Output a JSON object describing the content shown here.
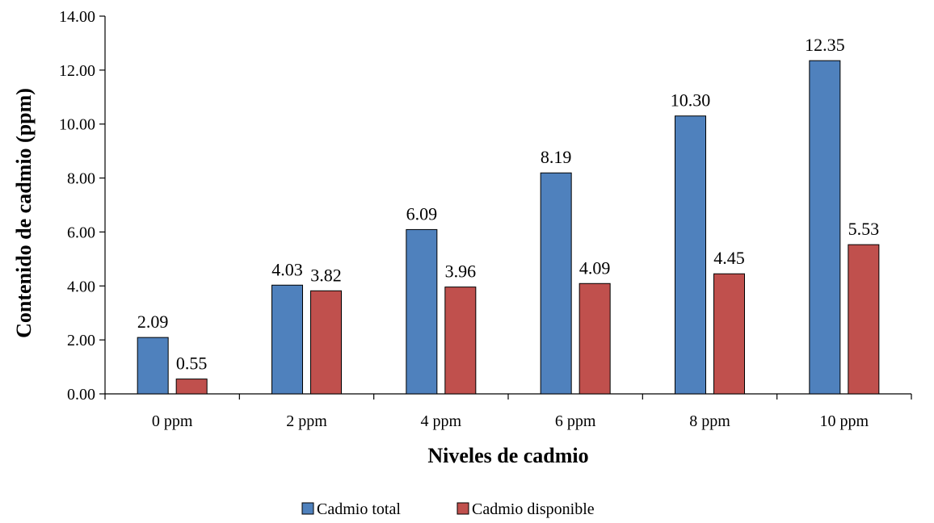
{
  "chart_data": {
    "type": "bar",
    "title": "",
    "xlabel": "Niveles de cadmio",
    "ylabel": "Contenido de cadmio (ppm)",
    "categories": [
      "0 ppm",
      "2 ppm",
      "4 ppm",
      "6 ppm",
      "8 ppm",
      "10 ppm"
    ],
    "series": [
      {
        "name": "Cadmio total",
        "color": "#4F81BD",
        "values": [
          2.09,
          4.03,
          6.09,
          8.19,
          10.3,
          12.35
        ],
        "labels": [
          "2.09",
          "4.03",
          "6.09",
          "8.19",
          "10.30",
          "12.35"
        ]
      },
      {
        "name": "Cadmio disponible",
        "color": "#C0504D",
        "values": [
          0.55,
          3.82,
          3.96,
          4.09,
          4.45,
          5.53
        ],
        "labels": [
          "0.55",
          "3.82",
          "3.96",
          "4.09",
          "4.45",
          "5.53"
        ]
      }
    ],
    "ylim": [
      0,
      14
    ],
    "yticks": [
      "0.00",
      "2.00",
      "4.00",
      "6.00",
      "8.00",
      "10.00",
      "12.00",
      "14.00"
    ],
    "grid": false,
    "legend_position": "bottom"
  }
}
